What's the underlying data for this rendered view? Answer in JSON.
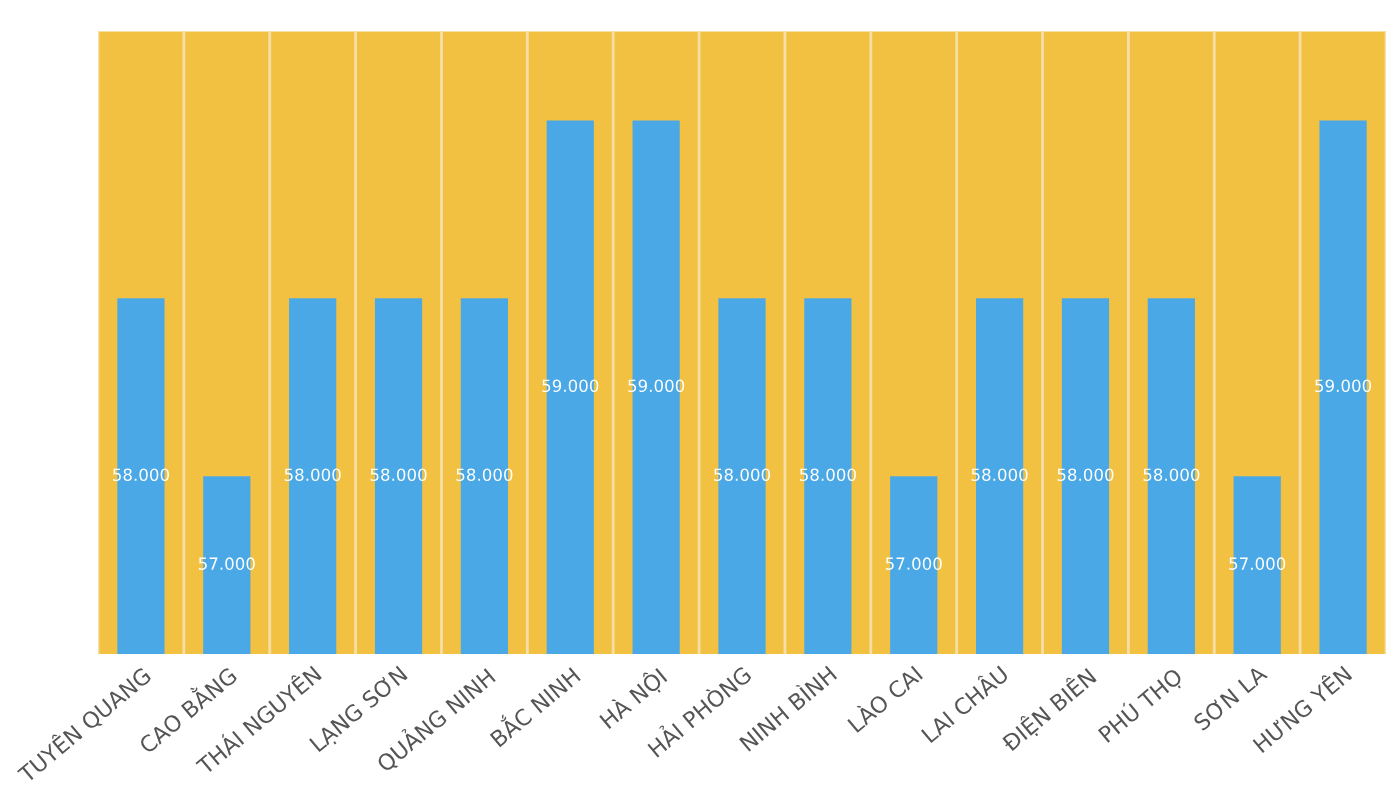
{
  "chart_data": {
    "type": "bar",
    "categories": [
      "TUYÊN QUANG",
      "CAO BẰNG",
      "THÁI NGUYÊN",
      "LẠNG SƠN",
      "QUẢNG NINH",
      "BẮC NINH",
      "HÀ NỘI",
      "HẢI PHÒNG",
      "NINH BÌNH",
      "LÀO CAI",
      "LAI CHÂU",
      "ĐIỆN BIÊN",
      "PHÚ THỌ",
      "SƠN LA",
      "HƯNG YÊN"
    ],
    "values": [
      58000,
      57000,
      58000,
      58000,
      58000,
      59000,
      59000,
      58000,
      58000,
      57000,
      58000,
      58000,
      58000,
      57000,
      59000
    ],
    "value_labels": [
      "58.000",
      "57.000",
      "58.000",
      "58.000",
      "58.000",
      "59.000",
      "59.000",
      "58.000",
      "58.000",
      "57.000",
      "58.000",
      "58.000",
      "58.000",
      "57.000",
      "59.000"
    ],
    "color": "#4ba8e6",
    "ylim": [
      56000,
      59500
    ],
    "tick_labels": "x",
    "grid": false,
    "legend": false
  }
}
